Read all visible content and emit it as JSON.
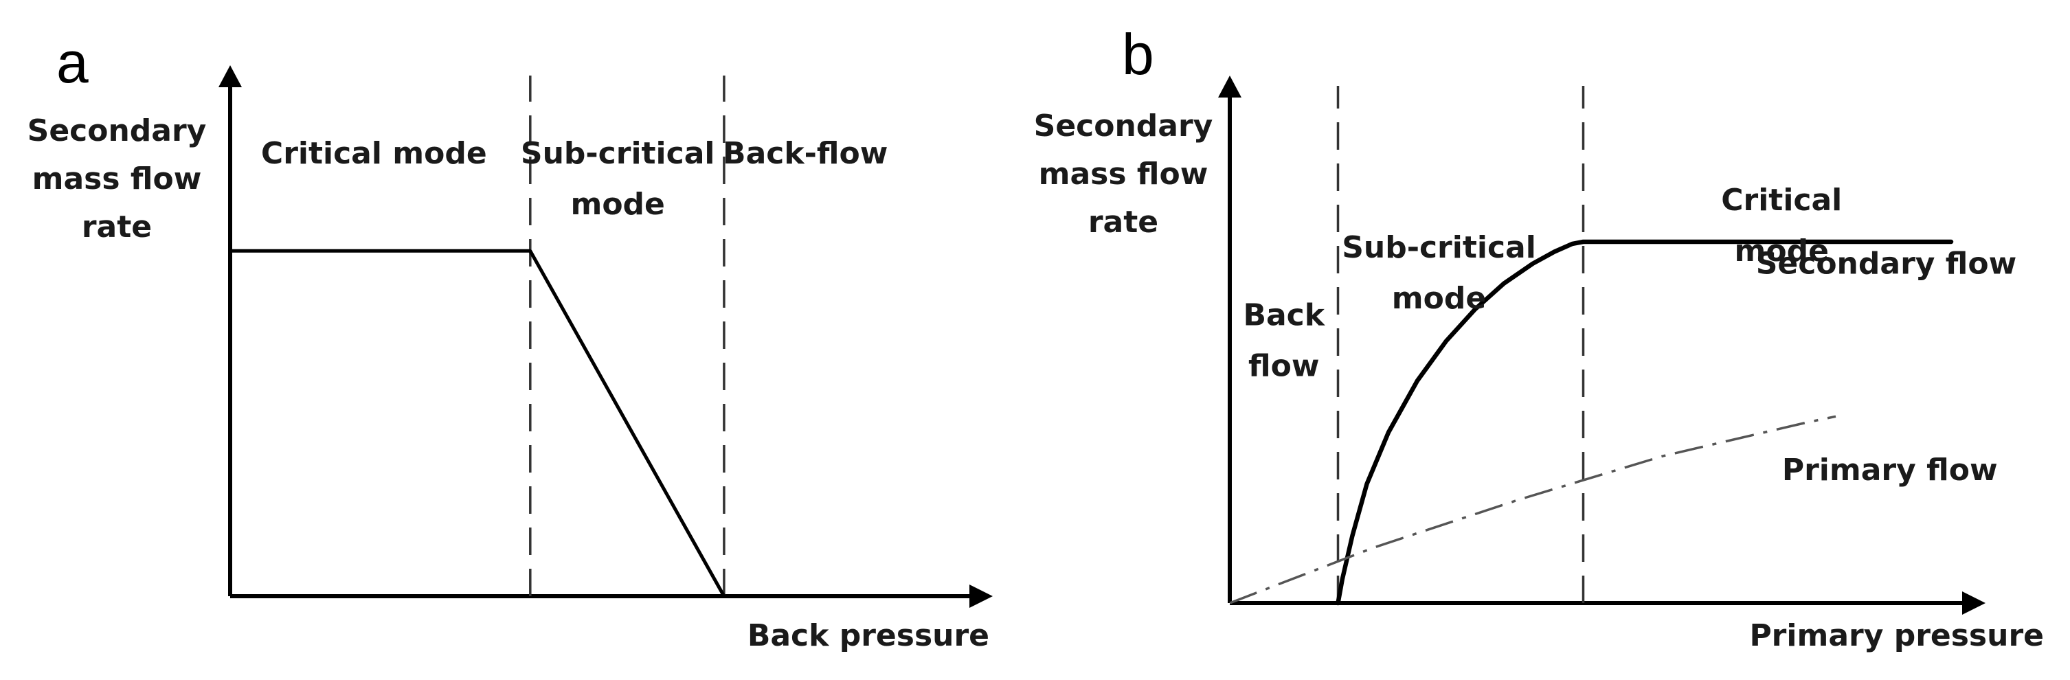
{
  "chart_data": [
    {
      "panel": "a",
      "type": "line",
      "title": "",
      "ylabel": [
        "Secondary",
        "mass flow",
        "rate"
      ],
      "xlabel": "Back pressure",
      "xlim": [
        0,
        100
      ],
      "ylim": [
        0,
        100
      ],
      "grid": false,
      "dividers": [
        48,
        79
      ],
      "regions": [
        {
          "lines": [
            "Critical mode"
          ],
          "x": 23,
          "y": 89
        },
        {
          "lines": [
            "Sub-critical",
            "mode"
          ],
          "x": 62,
          "y": 89
        },
        {
          "lines": [
            "Back-flow"
          ],
          "x": 92,
          "y": 89
        }
      ],
      "series": [
        {
          "name": "Secondary flow",
          "style": "solid",
          "x": [
            0,
            48,
            79
          ],
          "y": [
            71,
            71,
            0
          ]
        }
      ],
      "annotations": []
    },
    {
      "panel": "b",
      "type": "line",
      "title": "",
      "ylabel": [
        "Secondary",
        "mass flow",
        "rate"
      ],
      "xlabel": "Primary pressure",
      "xlim": [
        0,
        100
      ],
      "ylim": [
        0,
        100
      ],
      "grid": false,
      "dividers": [
        15,
        49
      ],
      "regions": [
        {
          "lines": [
            "Back",
            "flow"
          ],
          "x": 7.5,
          "y": 70
        },
        {
          "lines": [
            "Sub-critical",
            "mode"
          ],
          "x": 29,
          "y": 87
        },
        {
          "lines": [
            "Critical",
            "mode"
          ],
          "x": 76.5,
          "y": 99
        }
      ],
      "series": [
        {
          "name": "Secondary flow",
          "style": "solid",
          "x": [
            15,
            15.6,
            17,
            19,
            22,
            26,
            30,
            34,
            38,
            42,
            45,
            47.5,
            49,
            52,
            100
          ],
          "y": [
            0,
            6,
            17,
            30,
            43,
            56,
            66,
            74,
            80.5,
            85.5,
            88.5,
            90.5,
            91,
            91,
            91
          ]
        },
        {
          "name": "Primary flow",
          "style": "dashdot",
          "x": [
            0,
            20,
            40,
            60,
            80,
            84
          ],
          "y": [
            0,
            14,
            26,
            37,
            45.5,
            47
          ]
        }
      ],
      "annotations": [
        {
          "text": "Secondary flow",
          "x": 91,
          "y": 83
        },
        {
          "text": "Primary flow",
          "x": 91.5,
          "y": 31
        }
      ]
    }
  ],
  "panel_letters": [
    "a",
    "b"
  ]
}
